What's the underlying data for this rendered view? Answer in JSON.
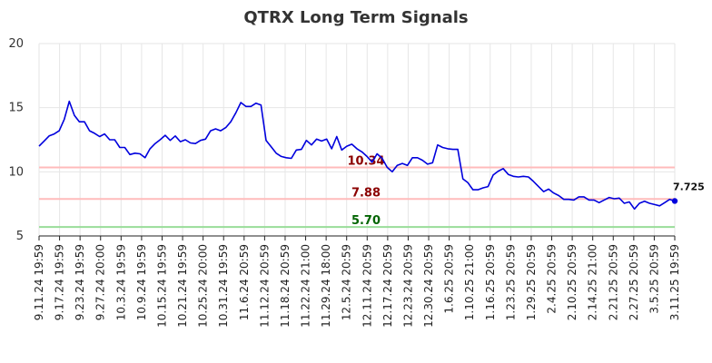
{
  "chart_data": {
    "type": "line",
    "title": "QTRX Long Term Signals",
    "ylim": [
      5,
      20
    ],
    "yticks": [
      5,
      10,
      15,
      20
    ],
    "grid": true,
    "x_tick_labels": [
      "9.11.24 19:59",
      "9.17.24 19:59",
      "9.23.24 19:59",
      "9.27.24 20:00",
      "10.3.24 19:59",
      "10.9.24 19:59",
      "10.15.24 19:59",
      "10.21.24 19:59",
      "10.25.24 20:00",
      "10.31.24 19:59",
      "11.6.24 20:59",
      "11.12.24 20:59",
      "11.18.24 20:59",
      "11.22.24 21:00",
      "11.29.24 18:00",
      "12.5.24 20:59",
      "12.11.24 20:59",
      "12.17.24 20:59",
      "12.23.24 20:59",
      "12.30.24 20:59",
      "1.6.25 20:59",
      "1.10.25 21:00",
      "1.16.25 20:59",
      "1.23.25 20:59",
      "1.29.25 20:59",
      "2.4.25 20:59",
      "2.10.25 20:59",
      "2.14.25 21:00",
      "2.21.25 20:59",
      "2.27.25 20:59",
      "3.5.25 20:59",
      "3.11.25 19:59"
    ],
    "series": [
      {
        "color": "#0000dd",
        "values": [
          12.0,
          12.4,
          12.8,
          12.95,
          13.2,
          14.1,
          15.5,
          14.4,
          13.9,
          13.9,
          13.2,
          13.0,
          12.75,
          12.95,
          12.5,
          12.5,
          11.9,
          11.9,
          11.35,
          11.45,
          11.4,
          11.1,
          11.8,
          12.2,
          12.5,
          12.85,
          12.45,
          12.8,
          12.35,
          12.5,
          12.25,
          12.2,
          12.45,
          12.55,
          13.2,
          13.35,
          13.2,
          13.45,
          13.9,
          14.6,
          15.4,
          15.1,
          15.1,
          15.35,
          15.2,
          12.45,
          11.95,
          11.45,
          11.2,
          11.1,
          11.05,
          11.7,
          11.75,
          12.45,
          12.1,
          12.55,
          12.4,
          12.55,
          11.8,
          12.75,
          11.7,
          12.0,
          12.15,
          11.8,
          11.55,
          11.2,
          10.75,
          11.4,
          11.05,
          10.35,
          10.0,
          10.5,
          10.65,
          10.5,
          11.1,
          11.1,
          10.9,
          10.6,
          10.7,
          12.1,
          11.9,
          11.8,
          11.75,
          11.75,
          9.45,
          9.15,
          8.6,
          8.6,
          8.75,
          8.85,
          9.75,
          10.05,
          10.25,
          9.8,
          9.65,
          9.6,
          9.65,
          9.6,
          9.25,
          8.85,
          8.45,
          8.65,
          8.35,
          8.15,
          7.85,
          7.85,
          7.8,
          8.05,
          8.05,
          7.8,
          7.8,
          7.6,
          7.8,
          8.0,
          7.9,
          7.95,
          7.55,
          7.65,
          7.1,
          7.55,
          7.7,
          7.55,
          7.45,
          7.35,
          7.6,
          7.85,
          7.725
        ]
      }
    ],
    "last_value_label": "7.725",
    "reference_lines": [
      {
        "value": 10.34,
        "label": "10.34",
        "line_color": "#ffbbbb",
        "text_color": "#8b0000"
      },
      {
        "value": 7.88,
        "label": "7.88",
        "line_color": "#ffbbbb",
        "text_color": "#8b0000"
      },
      {
        "value": 5.7,
        "label": "5.70",
        "line_color": "#99dd99",
        "text_color": "#006400"
      }
    ]
  }
}
